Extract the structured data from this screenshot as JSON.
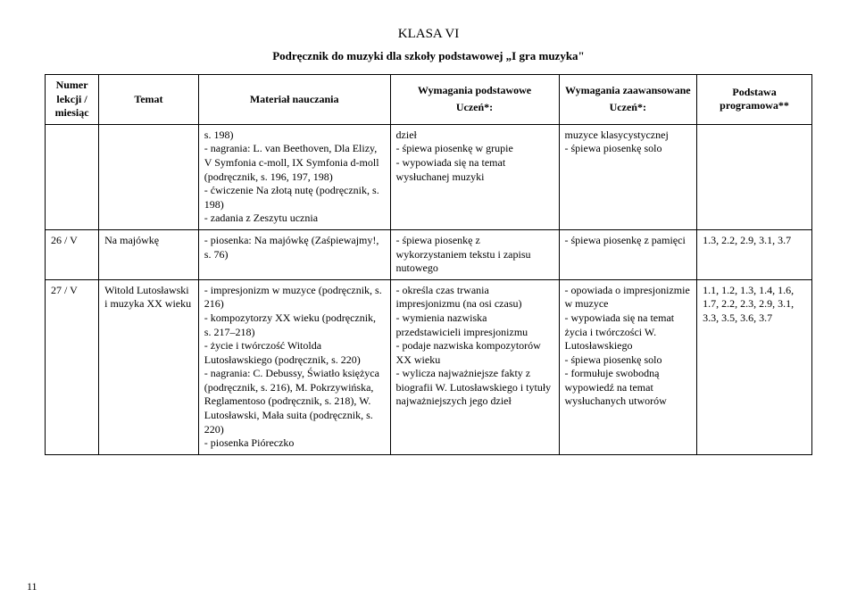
{
  "document": {
    "title": "KLASA VI",
    "subtitle": "Podręcznik do muzyki dla szkoły podstawowej „I gra muzyka\"",
    "page_number": "11",
    "background_color": "#ffffff",
    "text_color": "#000000",
    "border_color": "#000000",
    "font_family": "Times New Roman",
    "title_fontsize": 15,
    "body_fontsize": 12
  },
  "table": {
    "columns": [
      {
        "label": "Numer lekcji / miesiąc",
        "width_pct": 7
      },
      {
        "label": "Temat",
        "width_pct": 13
      },
      {
        "label": "Materiał nauczania",
        "width_pct": 25
      },
      {
        "label": "Wymagania podstawowe",
        "sublabel": "Uczeń*:",
        "width_pct": 22
      },
      {
        "label": "Wymagania zaawansowane",
        "sublabel": "Uczeń*:",
        "width_pct": 18
      },
      {
        "label": "Podstawa programowa**",
        "width_pct": 15
      }
    ],
    "rows": [
      {
        "num": "",
        "topic": "",
        "material": "s. 198)\n- nagrania: L. van Beethoven, Dla Elizy, V Symfonia c-moll, IX Symfonia d-moll (podręcznik, s. 196, 197, 198)\n- ćwiczenie Na złotą nutę (podręcznik, s. 198)\n- zadania z Zeszytu ucznia",
        "req_basic": "dzieł\n- śpiewa piosenkę w grupie\n- wypowiada się na temat wysłuchanej muzyki",
        "req_adv": "muzyce klasycystycznej\n- śpiewa piosenkę solo",
        "basis": ""
      },
      {
        "num": "26 / V",
        "topic": "Na majówkę",
        "material": "- piosenka: Na majówkę (Zaśpiewajmy!, s. 76)",
        "req_basic": "- śpiewa piosenkę z wykorzystaniem tekstu i zapisu nutowego",
        "req_adv": "- śpiewa piosenkę z pamięci",
        "basis": "1.3, 2.2, 2.9, 3.1, 3.7"
      },
      {
        "num": "27 / V",
        "topic": "Witold Lutosławski i muzyka XX wieku",
        "material": "- impresjonizm w muzyce (podręcznik, s. 216)\n- kompozytorzy XX wieku (podręcznik, s. 217–218)\n- życie i twórczość Witolda Lutosławskiego (podręcznik, s. 220)\n- nagrania: C. Debussy, Światło księżyca (podręcznik, s. 216), M. Pokrzywińska, Reglamentoso (podręcznik, s. 218), W. Lutosławski, Mała suita (podręcznik, s. 220)\n- piosenka Pióreczko",
        "req_basic": "- określa czas trwania impresjonizmu (na osi czasu)\n- wymienia nazwiska przedstawicieli impresjonizmu\n- podaje nazwiska kompozytorów XX wieku\n- wylicza najważniejsze fakty z biografii W. Lutosławskiego i tytuły najważniejszych jego dzieł",
        "req_adv": "- opowiada o impresjonizmie w muzyce\n- wypowiada się na temat życia i twórczości W. Lutosławskiego\n- śpiewa piosenkę solo\n- formułuje swobodną wypowiedź na temat wysłuchanych utworów",
        "basis": "1.1, 1.2, 1.3, 1.4, 1.6, 1.7, 2.2, 2.3, 2.9, 3.1, 3.3, 3.5, 3.6, 3.7"
      }
    ]
  }
}
